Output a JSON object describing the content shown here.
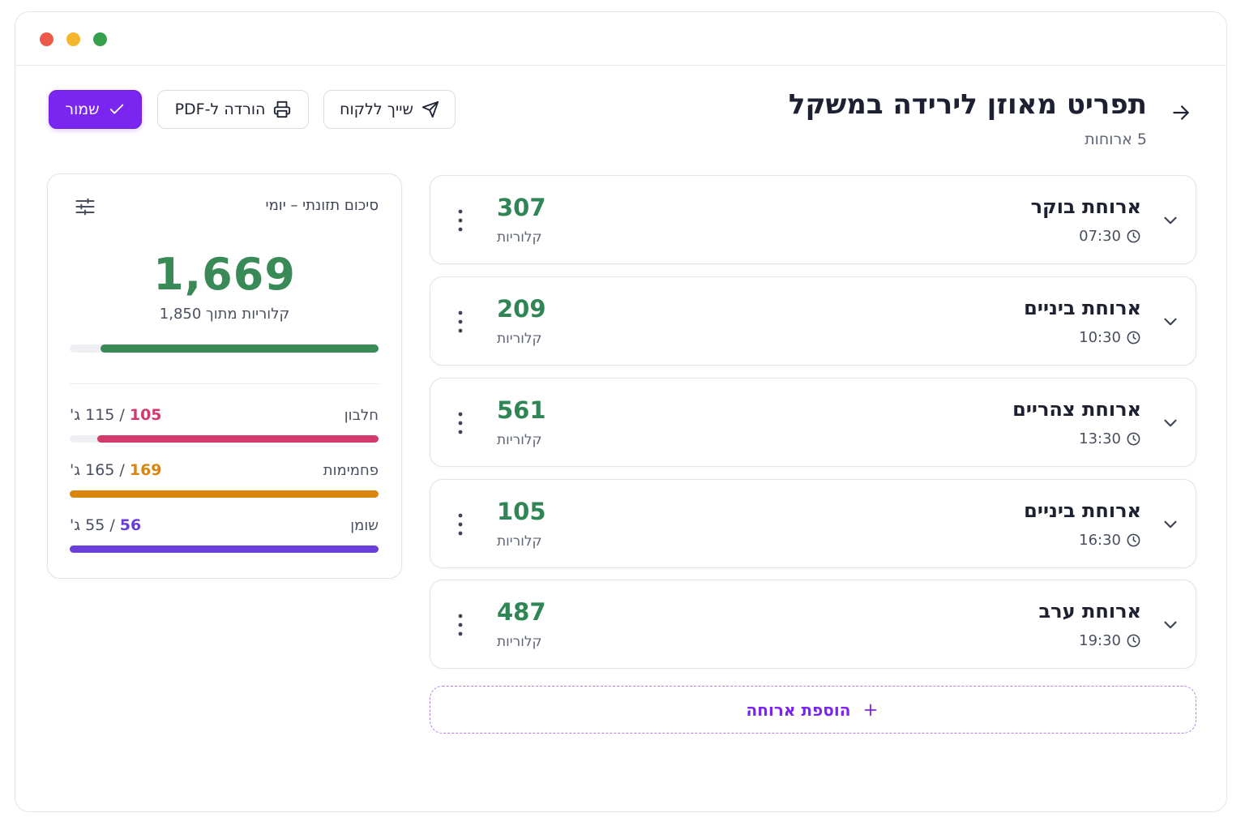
{
  "window": {
    "controls": [
      "close",
      "minimize",
      "maximize"
    ]
  },
  "header": {
    "title": "תפריט מאוזן לירידה במשקל",
    "subtitle": "5 ארוחות",
    "back_icon": "arrow-right-icon"
  },
  "toolbar": {
    "save_label": "שמור",
    "pdf_label": "הורדה ל-PDF",
    "share_label": "שייך ללקוח"
  },
  "summary": {
    "title": "סיכום תזונתי – יומי",
    "calories": "1,669",
    "calories_caption": "קלוריות מתוך 1,850",
    "calories_progress": 0.9,
    "macros": [
      {
        "label": "חלבון",
        "value": "105",
        "target": "115",
        "unit": "ג'",
        "color": "#d13a6a",
        "progress": 0.91
      },
      {
        "label": "פחמימות",
        "value": "169",
        "target": "165",
        "unit": "ג'",
        "color": "#d9850e",
        "progress": 1.0
      },
      {
        "label": "שומן",
        "value": "56",
        "target": "55",
        "unit": "ג'",
        "color": "#6a3fd9",
        "progress": 1.0
      }
    ]
  },
  "meals": [
    {
      "name": "ארוחת בוקר",
      "time": "07:30",
      "kcal": "307",
      "kcal_label": "קלוריות"
    },
    {
      "name": "ארוחת ביניים",
      "time": "10:30",
      "kcal": "209",
      "kcal_label": "קלוריות"
    },
    {
      "name": "ארוחת צהריים",
      "time": "13:30",
      "kcal": "561",
      "kcal_label": "קלוריות"
    },
    {
      "name": "ארוחת ביניים",
      "time": "16:30",
      "kcal": "105",
      "kcal_label": "קלוריות"
    },
    {
      "name": "ארוחת ערב",
      "time": "19:30",
      "kcal": "487",
      "kcal_label": "קלוריות"
    }
  ],
  "add_meal_label": "הוספת ארוחה",
  "colors": {
    "accent": "#7a25f0",
    "calories_green": "#3a8a58",
    "kcal_green": "#2f8553"
  }
}
